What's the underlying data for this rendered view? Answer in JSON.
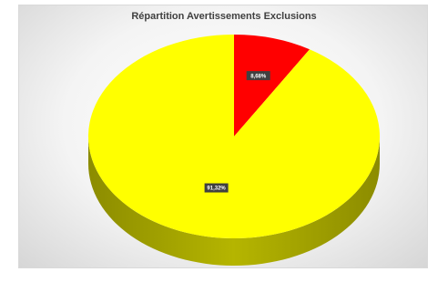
{
  "chart_data": {
    "type": "pie",
    "title": "Répartition Avertissements Exclusions",
    "slices": [
      {
        "value": 8.68,
        "label": "8,68%",
        "color": "#ff0000",
        "side_color": "#a00000"
      },
      {
        "value": 91.32,
        "label": "91,32%",
        "color": "#ffff00",
        "side_color": "#a6a600"
      }
    ],
    "style": "3d",
    "legend": "none"
  }
}
